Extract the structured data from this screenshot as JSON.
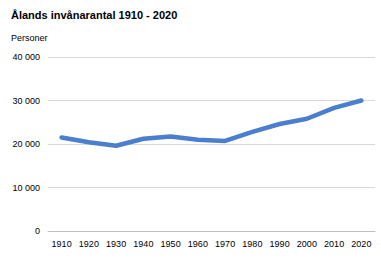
{
  "chart_data": {
    "type": "line",
    "title": "Ålands invånarantal 1910 - 2020",
    "subtitle": "Personer",
    "categories": [
      "1910",
      "1920",
      "1930",
      "1940",
      "1950",
      "1960",
      "1970",
      "1980",
      "1990",
      "2000",
      "2010",
      "2020"
    ],
    "values": [
      21500,
      20400,
      19600,
      21200,
      21700,
      21000,
      20700,
      22800,
      24600,
      25800,
      28300,
      30000
    ],
    "color": "#4a7ecf",
    "ylim": [
      0,
      40000
    ],
    "yticks": [
      0,
      {
        "value": 10000,
        "label": "10 000"
      },
      {
        "value": 20000,
        "label": "20 000"
      },
      {
        "value": 30000,
        "label": "30 000"
      },
      {
        "value": 40000,
        "label": "40 000"
      }
    ],
    "grid": true
  }
}
